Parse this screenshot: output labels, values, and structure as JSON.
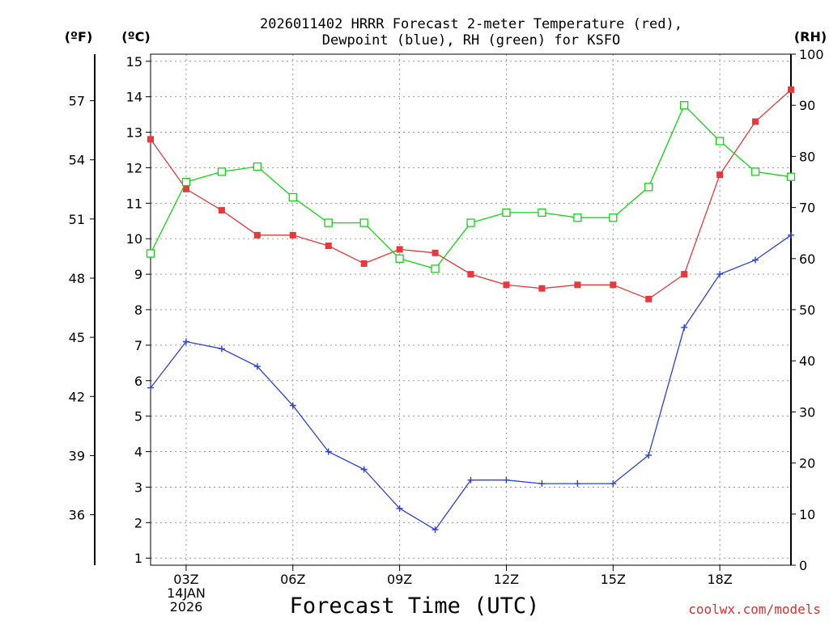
{
  "watermark": "coolwx.com/models",
  "chart_data": {
    "type": "line",
    "title_lines": [
      "2026011402 HRRR Forecast 2-meter Temperature (red),",
      "Dewpoint (blue), RH (green) for KSFO"
    ],
    "xlabel": "Forecast Time (UTC)",
    "x_hours": [
      2,
      3,
      4,
      5,
      6,
      7,
      8,
      9,
      10,
      11,
      12,
      13,
      14,
      15,
      16,
      17,
      18,
      19,
      20
    ],
    "xlim": [
      2,
      20
    ],
    "x_ticks": [
      {
        "hour": 3,
        "lines": [
          "03Z",
          "14JAN",
          "2026"
        ]
      },
      {
        "hour": 6,
        "lines": [
          "06Z"
        ]
      },
      {
        "hour": 9,
        "lines": [
          "09Z"
        ]
      },
      {
        "hour": 12,
        "lines": [
          "12Z"
        ]
      },
      {
        "hour": 15,
        "lines": [
          "15Z"
        ]
      },
      {
        "hour": 18,
        "lines": [
          "18Z"
        ]
      }
    ],
    "left_unit_f": "(ºF)",
    "left_unit_c": "(ºC)",
    "right_unit": "(RH)",
    "celsius_axis": {
      "range": [
        0.8,
        15.2
      ],
      "ticks": [
        1,
        2,
        3,
        4,
        5,
        6,
        7,
        8,
        9,
        10,
        11,
        12,
        13,
        14,
        15
      ]
    },
    "fahrenheit_ticks": [
      36,
      39,
      42,
      45,
      48,
      51,
      54,
      57
    ],
    "rh_axis": {
      "range": [
        0,
        100
      ],
      "ticks": [
        0,
        10,
        20,
        30,
        40,
        50,
        60,
        70,
        80,
        90,
        100
      ]
    },
    "series": [
      {
        "name": "Temperature",
        "axis": "celsius",
        "color": "#e8383b",
        "marker": "filled-square",
        "values": [
          12.8,
          11.4,
          10.8,
          10.1,
          10.1,
          9.8,
          9.3,
          9.7,
          9.6,
          9.0,
          8.7,
          8.6,
          8.7,
          8.7,
          8.3,
          9.0,
          11.8,
          13.3,
          14.2
        ]
      },
      {
        "name": "Dewpoint",
        "axis": "celsius",
        "color": "#2b3fdb",
        "marker": "plus",
        "values": [
          5.8,
          7.1,
          6.9,
          6.4,
          5.3,
          4.0,
          3.5,
          2.4,
          1.8,
          3.2,
          3.2,
          3.1,
          3.1,
          3.1,
          3.9,
          7.5,
          9.0,
          9.4,
          10.1
        ]
      },
      {
        "name": "RH",
        "axis": "rh",
        "color": "#14d414",
        "marker": "open-square",
        "values": [
          61,
          75,
          77,
          78,
          72,
          67,
          67,
          60,
          58,
          67,
          69,
          69,
          68,
          68,
          74,
          90,
          83,
          77,
          76
        ]
      }
    ]
  }
}
